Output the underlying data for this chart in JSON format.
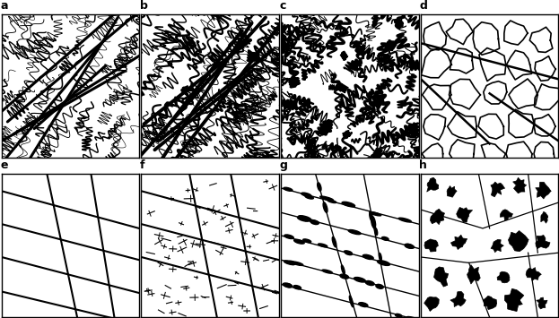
{
  "fig_width": 6.23,
  "fig_height": 3.55,
  "dpi": 100,
  "bg_color": "#ffffff",
  "border_color": "#000000",
  "labels": [
    "a",
    "b",
    "c",
    "d",
    "e",
    "f",
    "g",
    "h"
  ],
  "nrows": 2,
  "ncols": 4
}
